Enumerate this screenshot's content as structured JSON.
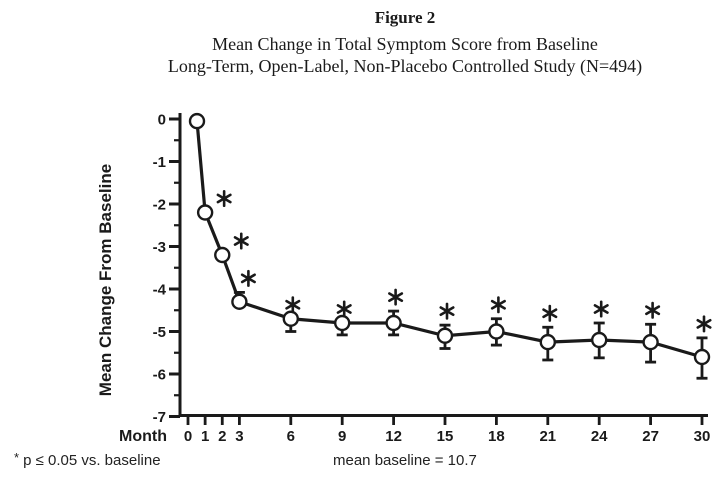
{
  "figure": {
    "label": "Figure 2",
    "subtitle1": "Mean Change in Total Symptom Score from Baseline",
    "subtitle2": "Long-Term, Open-Label, Non-Placebo Controlled Study (N=494)"
  },
  "footnotes": {
    "star": "*",
    "significance": "p ≤ 0.05 vs. baseline",
    "baseline_note": "mean baseline = 10.7"
  },
  "chart_data": {
    "type": "line",
    "title": "Mean Change in Total Symptom Score from Baseline",
    "subtitle": "Long-Term, Open-Label, Non-Placebo Controlled Study (N=494)",
    "xlabel": "Month",
    "ylabel": "Mean Change From Baseline",
    "x": [
      0,
      1,
      2,
      3,
      6,
      9,
      12,
      15,
      18,
      21,
      24,
      27,
      30
    ],
    "y": [
      -0.05,
      -2.2,
      -3.2,
      -4.3,
      -4.7,
      -4.8,
      -4.8,
      -5.1,
      -5.0,
      -5.25,
      -5.2,
      -5.25,
      -5.6
    ],
    "err_up": [
      null,
      null,
      null,
      0.22,
      null,
      null,
      0.28,
      0.25,
      0.3,
      0.35,
      0.4,
      0.42,
      0.45
    ],
    "err_down": [
      null,
      null,
      null,
      null,
      0.3,
      0.28,
      0.28,
      0.3,
      0.32,
      0.42,
      0.42,
      0.47,
      0.5
    ],
    "significant": [
      false,
      true,
      true,
      true,
      true,
      true,
      true,
      true,
      true,
      true,
      true,
      true,
      true
    ],
    "xlim": [
      0,
      30
    ],
    "ylim": [
      -7,
      0
    ],
    "xticks": [
      0,
      1,
      2,
      3,
      6,
      9,
      12,
      15,
      18,
      21,
      24,
      27,
      30
    ],
    "yticks": [
      0,
      -1,
      -2,
      -3,
      -4,
      -5,
      -6,
      -7
    ],
    "y_minor_tick_step": 0.5,
    "marker": "open-circle",
    "ink": "#1a1a1a",
    "background": "#ffffff",
    "grid": false,
    "legend": "none",
    "annotation": "asterisks mark p ≤ 0.05 vs. baseline"
  }
}
